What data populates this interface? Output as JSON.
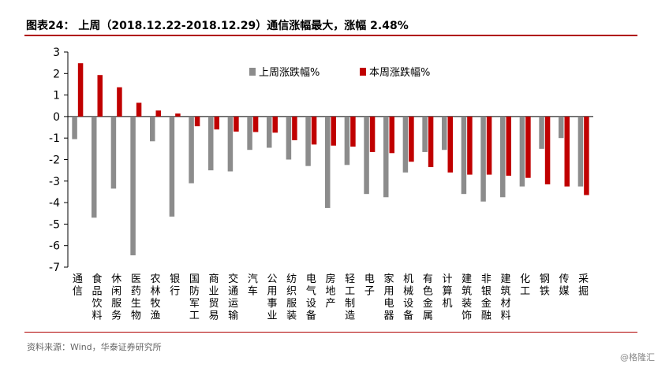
{
  "header": {
    "title": "图表24： 上周（2018.12.22-2018.12.29）通信涨幅最大，涨幅 2.48%"
  },
  "footer": {
    "source": "资料来源：Wind，华泰证券研究所",
    "watermark": "@格隆汇"
  },
  "colors": {
    "last_week": "#8c8c8c",
    "this_week": "#c00000",
    "rule": "#b00000"
  },
  "chart_data": {
    "type": "bar",
    "categories": [
      "通信",
      "食品饮料",
      "休闲服务",
      "医药生物",
      "农林牧渔",
      "银行",
      "国防军工",
      "商业贸易",
      "交通运输",
      "汽车",
      "公用事业",
      "纺织服装",
      "电气设备",
      "房地产",
      "轻工制造",
      "电子",
      "家用电器",
      "机械设备",
      "有色金属",
      "计算机",
      "建筑装饰",
      "非银金融",
      "建筑材料",
      "化工",
      "钢铁",
      "传媒",
      "采掘"
    ],
    "series": [
      {
        "name": "上周涨跌幅%",
        "values": [
          -1.05,
          -4.7,
          -3.35,
          -6.45,
          -1.15,
          -4.65,
          -3.1,
          -2.5,
          -2.55,
          -1.55,
          -1.45,
          -2.0,
          -2.3,
          -4.25,
          -2.25,
          -3.6,
          -3.75,
          -2.6,
          -1.65,
          -1.55,
          -3.6,
          -3.95,
          -3.75,
          -3.25,
          -1.5,
          -1.0,
          -3.25
        ]
      },
      {
        "name": "本周涨跌幅%",
        "values": [
          2.48,
          1.93,
          1.36,
          0.64,
          0.28,
          0.14,
          -0.45,
          -0.6,
          -0.7,
          -0.72,
          -0.75,
          -1.1,
          -1.3,
          -1.35,
          -1.4,
          -1.65,
          -1.7,
          -2.1,
          -2.35,
          -2.6,
          -2.7,
          -2.7,
          -2.75,
          -2.85,
          -3.15,
          -3.25,
          -3.65
        ]
      }
    ],
    "yticks": [
      3,
      2,
      1,
      0,
      -1,
      -2,
      -3,
      -4,
      -5,
      -6,
      -7
    ],
    "ylim": [
      -7,
      3
    ],
    "legend_position": "top-right",
    "grid": false
  }
}
